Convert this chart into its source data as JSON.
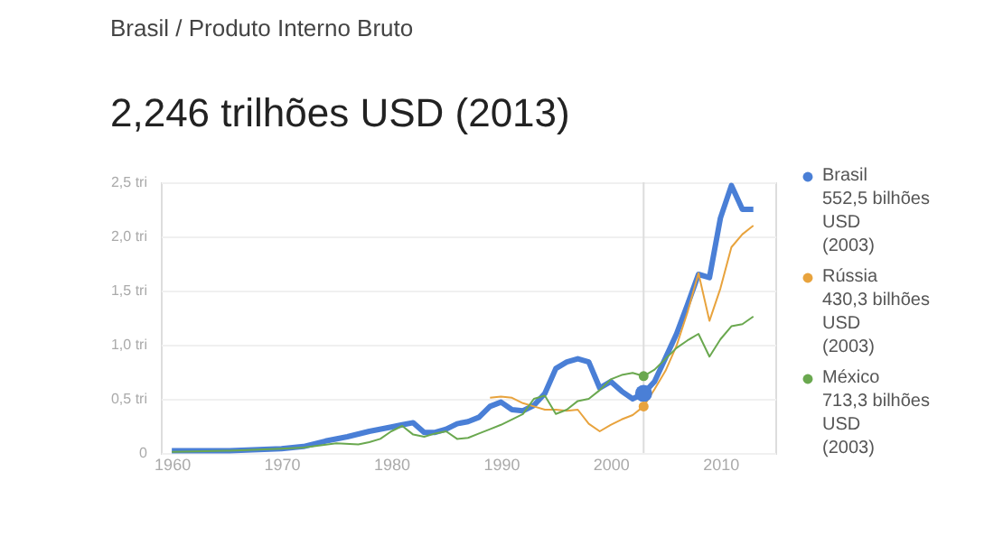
{
  "chart_data": {
    "type": "line",
    "title": "2,246 trilhões USD (2013)",
    "subtitle": "Brasil / Produto Interno Bruto",
    "xlim": [
      1959,
      2015
    ],
    "xticks": [
      1960,
      1970,
      1980,
      1990,
      2000,
      2010
    ],
    "ylim": [
      0,
      2.5
    ],
    "yticks": [
      0,
      {
        "value": 0.5,
        "label": "0,5 tri"
      },
      {
        "value": 1.0,
        "label": "1,0 tri"
      },
      {
        "value": 1.5,
        "label": "1,5 tri"
      },
      {
        "value": 2.0,
        "label": "2,0 tri"
      },
      {
        "value": 2.5,
        "label": "2,5 tri"
      }
    ],
    "grid": "y",
    "legend": "right",
    "marker": "none",
    "ref_lines": [
      {
        "axis": "x",
        "value": 2003,
        "label": null,
        "color": "#dddddd"
      }
    ],
    "series": [
      {
        "name": "Brasil",
        "color": "#4a7fd6",
        "x": [
          1960,
          1965,
          1970,
          1972,
          1974,
          1976,
          1978,
          1980,
          1981,
          1982,
          1983,
          1984,
          1985,
          1986,
          1987,
          1988,
          1989,
          1990,
          1991,
          1992,
          1993,
          1994,
          1995,
          1996,
          1997,
          1998,
          1999,
          2000,
          2001,
          2002,
          2003,
          2004,
          2005,
          2006,
          2007,
          2008,
          2009,
          2010,
          2011,
          2012,
          2013
        ],
        "values": [
          0.02,
          0.02,
          0.04,
          0.06,
          0.11,
          0.15,
          0.2,
          0.24,
          0.26,
          0.28,
          0.19,
          0.19,
          0.22,
          0.27,
          0.29,
          0.33,
          0.43,
          0.47,
          0.4,
          0.39,
          0.44,
          0.55,
          0.78,
          0.84,
          0.87,
          0.84,
          0.6,
          0.66,
          0.57,
          0.5,
          0.55,
          0.66,
          0.88,
          1.1,
          1.37,
          1.65,
          1.62,
          2.17,
          2.47,
          2.25,
          2.25
        ]
      },
      {
        "name": "Rússia",
        "color": "#e8a33d",
        "x": [
          1989,
          1990,
          1991,
          1992,
          1993,
          1994,
          1995,
          1996,
          1997,
          1998,
          1999,
          2000,
          2001,
          2002,
          2003,
          2004,
          2005,
          2006,
          2007,
          2008,
          2009,
          2010,
          2011,
          2012,
          2013
        ],
        "values": [
          0.51,
          0.52,
          0.51,
          0.46,
          0.43,
          0.4,
          0.4,
          0.39,
          0.4,
          0.27,
          0.2,
          0.26,
          0.31,
          0.35,
          0.43,
          0.59,
          0.76,
          0.99,
          1.3,
          1.66,
          1.22,
          1.52,
          1.9,
          2.02,
          2.1
        ]
      },
      {
        "name": "México",
        "color": "#6aa84f",
        "x": [
          1960,
          1965,
          1970,
          1972,
          1975,
          1977,
          1978,
          1979,
          1980,
          1981,
          1982,
          1983,
          1984,
          1985,
          1986,
          1987,
          1988,
          1989,
          1990,
          1991,
          1992,
          1993,
          1994,
          1995,
          1996,
          1997,
          1998,
          1999,
          2000,
          2001,
          2002,
          2003,
          2004,
          2005,
          2006,
          2007,
          2008,
          2009,
          2010,
          2011,
          2012,
          2013
        ],
        "values": [
          0.01,
          0.02,
          0.04,
          0.05,
          0.09,
          0.08,
          0.1,
          0.13,
          0.2,
          0.25,
          0.17,
          0.15,
          0.18,
          0.2,
          0.13,
          0.14,
          0.18,
          0.22,
          0.26,
          0.31,
          0.36,
          0.5,
          0.53,
          0.36,
          0.4,
          0.48,
          0.5,
          0.58,
          0.68,
          0.72,
          0.74,
          0.71,
          0.77,
          0.87,
          0.97,
          1.04,
          1.1,
          0.89,
          1.05,
          1.17,
          1.19,
          1.26
        ]
      }
    ],
    "annotations": [
      "552,5 bilhões\nUSD\n(2003)",
      "430,3 bilhões\nUSD\n(2003)",
      "713,3 bilhões\nUSD\n(2003)"
    ]
  }
}
